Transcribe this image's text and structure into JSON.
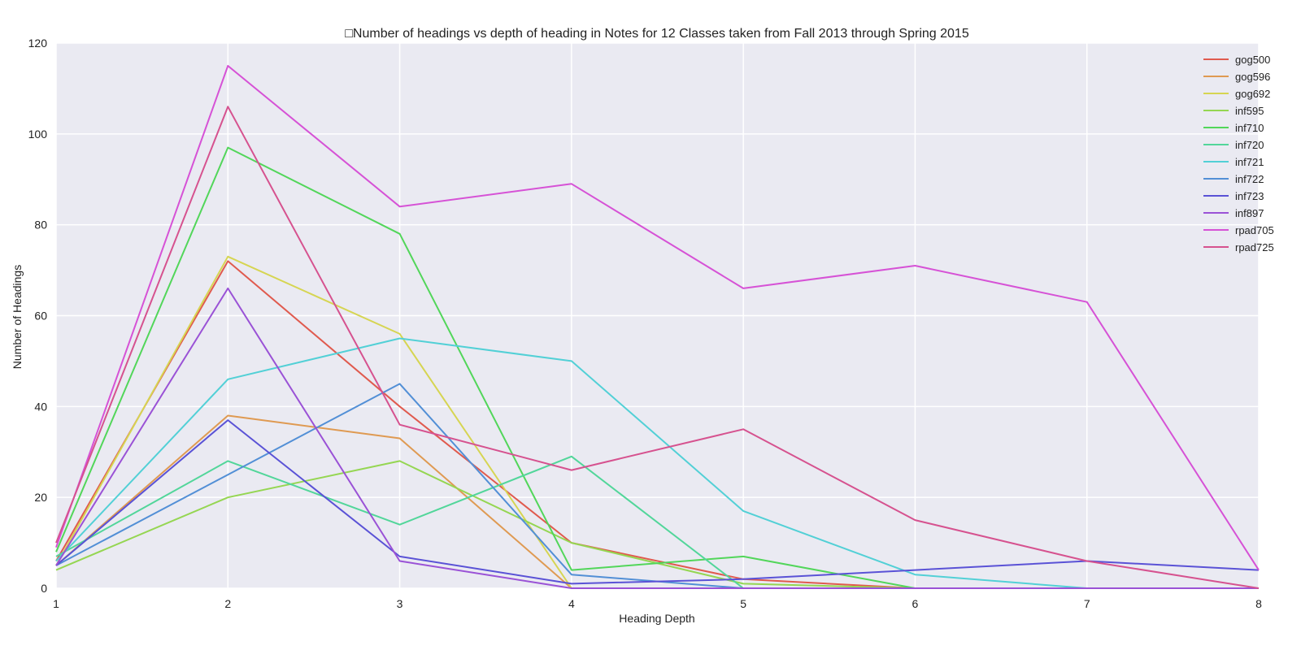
{
  "chart_data": {
    "type": "line",
    "title": "□Number of headings vs depth of heading in Notes for 12 Classes taken from Fall 2013 through Spring 2015",
    "xlabel": "Heading Depth",
    "ylabel": "Number of Headings",
    "x": [
      1,
      2,
      3,
      4,
      5,
      6,
      7,
      8
    ],
    "xlim": [
      1,
      8
    ],
    "ylim": [
      0,
      120
    ],
    "xticks": [
      "1",
      "2",
      "3",
      "4",
      "5",
      "6",
      "7",
      "8"
    ],
    "yticks": [
      "0",
      "20",
      "40",
      "60",
      "80",
      "100",
      "120"
    ],
    "grid": true,
    "legend_position": "top-right",
    "series": [
      {
        "name": "gog500",
        "color": "#e05a4e",
        "values": [
          6,
          72,
          40,
          10,
          2,
          0,
          0,
          0
        ]
      },
      {
        "name": "gog596",
        "color": "#df9a52",
        "values": [
          5,
          38,
          33,
          0,
          0,
          0,
          0,
          0
        ]
      },
      {
        "name": "gog692",
        "color": "#d6d552",
        "values": [
          5,
          73,
          56,
          0,
          0,
          0,
          0,
          0
        ]
      },
      {
        "name": "inf595",
        "color": "#95d652",
        "values": [
          4,
          20,
          28,
          10,
          1,
          0,
          0,
          0
        ]
      },
      {
        "name": "inf710",
        "color": "#52d65a",
        "values": [
          8,
          97,
          78,
          4,
          7,
          0,
          0,
          0
        ]
      },
      {
        "name": "inf720",
        "color": "#52d69a",
        "values": [
          7,
          28,
          14,
          29,
          0,
          0,
          0,
          0
        ]
      },
      {
        "name": "inf721",
        "color": "#52d0d6",
        "values": [
          6,
          46,
          55,
          50,
          17,
          3,
          0,
          0
        ]
      },
      {
        "name": "inf722",
        "color": "#528fd6",
        "values": [
          5,
          25,
          45,
          3,
          0,
          0,
          0,
          0
        ]
      },
      {
        "name": "inf723",
        "color": "#5a52d6",
        "values": [
          5,
          37,
          7,
          1,
          2,
          4,
          6,
          4
        ]
      },
      {
        "name": "inf897",
        "color": "#9a52d6",
        "values": [
          5,
          66,
          6,
          0,
          0,
          0,
          0,
          0
        ]
      },
      {
        "name": "rpad705",
        "color": "#d652d6",
        "values": [
          9,
          115,
          84,
          89,
          66,
          71,
          63,
          4
        ]
      },
      {
        "name": "rpad725",
        "color": "#d6528f",
        "values": [
          10,
          106,
          36,
          26,
          35,
          15,
          6,
          0
        ]
      }
    ]
  }
}
